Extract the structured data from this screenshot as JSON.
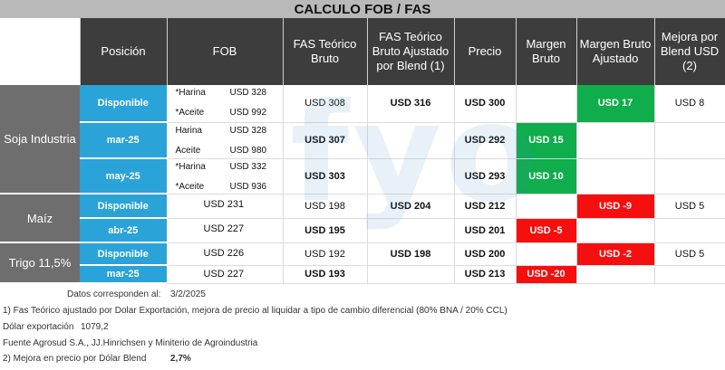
{
  "title": "CALCULO FOB / FAS",
  "headers": {
    "posicion": "Posición",
    "fob": "FOB",
    "fas_teorico": "FAS Teórico Bruto",
    "fas_ajustado": "FAS Teórico Bruto Ajustado por Blend (1)",
    "precio": "Precio",
    "margen_bruto": "Margen Bruto",
    "margen_ajustado": "Margen Bruto Ajustado",
    "mejora": "Mejora por Blend USD (2)"
  },
  "groups": {
    "soja": "Soja Industria",
    "maiz": "Maíz",
    "trigo": "Trigo 11,5%"
  },
  "rows": [
    {
      "pos": "Disponible",
      "fob_l1": "*Harina",
      "fob_v1": "USD 328",
      "fob_l2": "*Aceite",
      "fob_v2": "USD 992",
      "fas": "USD 308",
      "fas_aj": "USD 316",
      "precio": "USD 300",
      "margen": "",
      "margen_aj": "USD 17",
      "mejora": "USD 8"
    },
    {
      "pos": "mar-25",
      "fob_l1": "Harina",
      "fob_v1": "USD 328",
      "fob_l2": "Aceite",
      "fob_v2": "USD 980",
      "fas": "USD 307",
      "fas_aj": "",
      "precio": "USD 292",
      "margen": "USD 15",
      "margen_aj": "",
      "mejora": ""
    },
    {
      "pos": "may-25",
      "fob_l1": "*Harina",
      "fob_v1": "USD 332",
      "fob_l2": "*Aceite",
      "fob_v2": "USD 936",
      "fas": "USD 303",
      "fas_aj": "",
      "precio": "USD 293",
      "margen": "USD 10",
      "margen_aj": "",
      "mejora": ""
    },
    {
      "pos": "Disponible",
      "fob": "USD 231",
      "fas": "USD 198",
      "fas_aj": "USD 204",
      "precio": "USD 212",
      "margen": "",
      "margen_aj": "USD -9",
      "mejora": "USD 5"
    },
    {
      "pos": "abr-25",
      "fob": "USD 227",
      "fas": "USD 195",
      "fas_aj": "",
      "precio": "USD 201",
      "margen": "USD -5",
      "margen_aj": "",
      "mejora": ""
    },
    {
      "pos": "Disponible",
      "fob": "USD 226",
      "fas": "USD 192",
      "fas_aj": "USD 198",
      "precio": "USD 200",
      "margen": "",
      "margen_aj": "USD -2",
      "mejora": "USD 5"
    },
    {
      "pos": "mar-25",
      "fob": "USD 227",
      "fas": "USD 193",
      "fas_aj": "",
      "precio": "USD 213",
      "margen": "USD -20",
      "margen_aj": "",
      "mejora": ""
    }
  ],
  "notes": {
    "fecha_label": "Datos corresponden al:",
    "fecha": "3/2/2025",
    "nota1": "1) Fas Teórico ajustado por Dolar Exportación, mejora de precio al liquidar a tipo de cambio diferencial (80% BNA / 20% CCL)",
    "dolar_label": "Dólar exportación",
    "dolar": "1079,2",
    "fuente": "Fuente Agrosud S.A., JJ.Hinrichsen y Miniterio de Agroindustria",
    "nota2_label": "2) Mejora en precio por Dólar Blend",
    "nota2": "2,7%"
  },
  "watermark": "fyo",
  "colors": {
    "header": "#3d3d3d",
    "group": "#6e6e6e",
    "position": "#2aa3d8",
    "positive": "#0fad4b",
    "negative": "#f70e0e"
  }
}
